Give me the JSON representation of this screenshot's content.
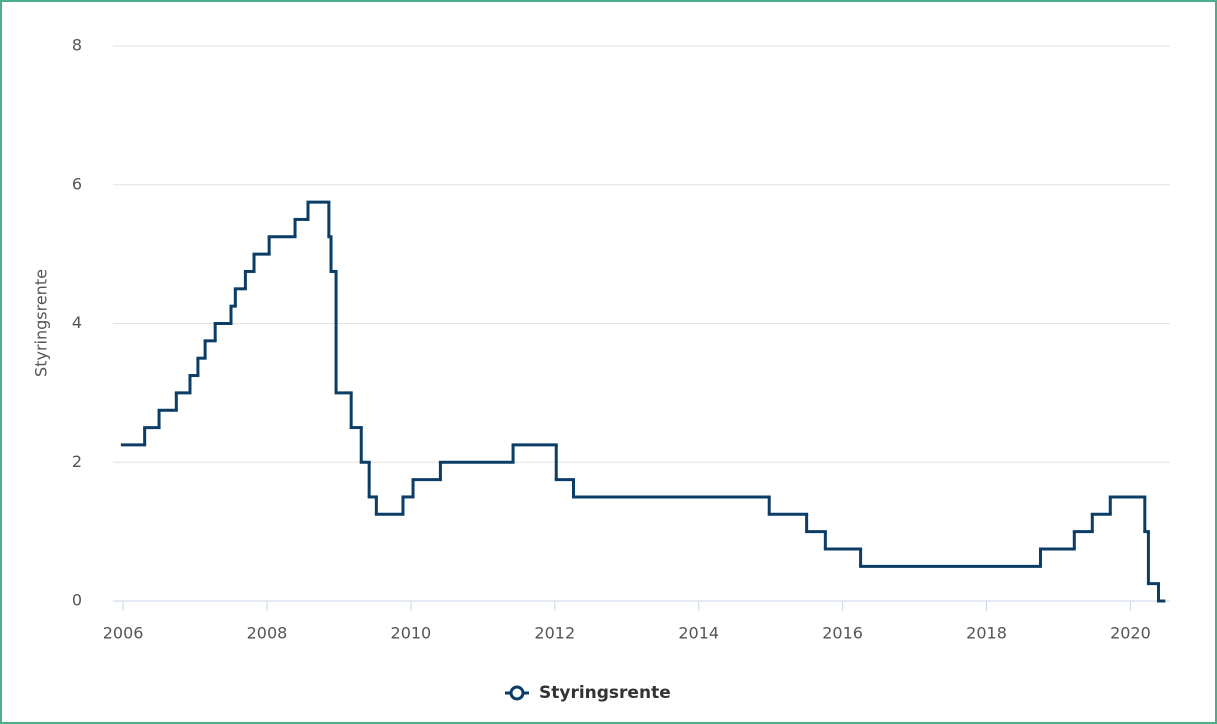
{
  "chart_data": {
    "type": "step-line",
    "y_label": "Styringsrente",
    "xlim": [
      2005.86,
      2020.55
    ],
    "xticks": [
      2006,
      2008,
      2010,
      2012,
      2014,
      2016,
      2018,
      2020
    ],
    "ylim": [
      0,
      8
    ],
    "yticks": [
      0,
      2,
      4,
      6,
      8
    ],
    "grid": true,
    "legend": "bottom",
    "series": [
      {
        "name": "Styringsrente",
        "color": "#0b3d66",
        "x": [
          2005.99,
          2006.3,
          2006.5,
          2006.74,
          2006.93,
          2007.04,
          2007.14,
          2007.28,
          2007.5,
          2007.56,
          2007.7,
          2007.82,
          2008.03,
          2008.39,
          2008.57,
          2008.86,
          2008.89,
          2008.96,
          2009.17,
          2009.31,
          2009.42,
          2009.52,
          2009.89,
          2010.03,
          2010.41,
          2011.42,
          2012.02,
          2012.26,
          2014.98,
          2015.5,
          2015.76,
          2016.25,
          2018.75,
          2019.22,
          2019.47,
          2019.72,
          2020.2,
          2020.25,
          2020.39,
          2020.45
        ],
        "values": [
          2.25,
          2.5,
          2.75,
          3.0,
          3.25,
          3.5,
          3.75,
          4.0,
          4.25,
          4.5,
          4.75,
          5.0,
          5.25,
          5.5,
          5.75,
          5.25,
          4.75,
          3.0,
          2.5,
          2.0,
          1.5,
          1.25,
          1.5,
          1.75,
          2.0,
          2.25,
          1.75,
          1.5,
          1.25,
          1.0,
          0.75,
          0.5,
          0.75,
          1.0,
          1.25,
          1.5,
          1.0,
          0.25,
          0,
          0
        ]
      }
    ]
  }
}
